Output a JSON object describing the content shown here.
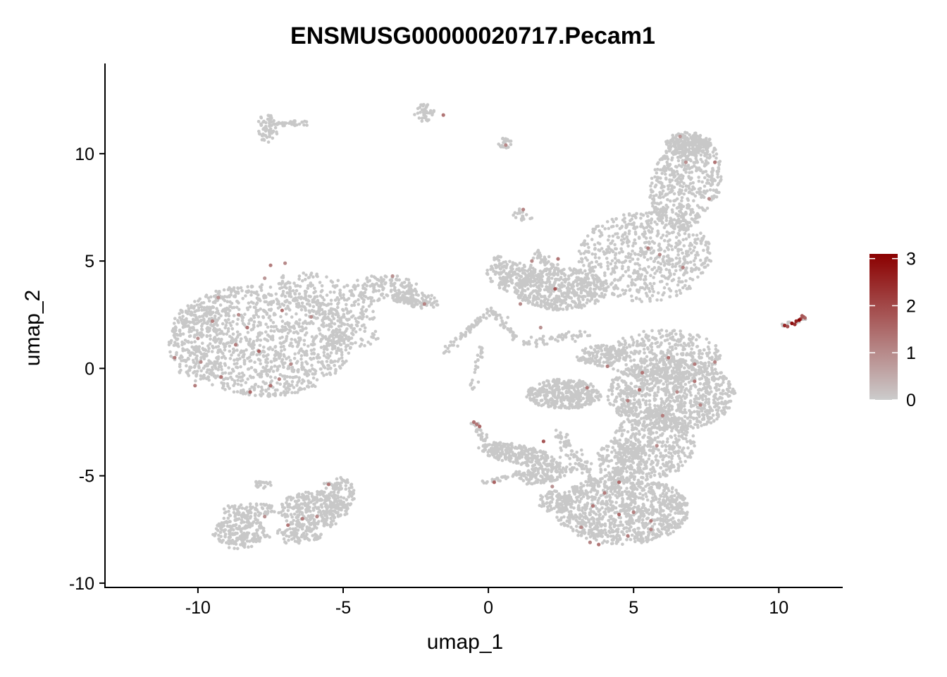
{
  "chart_data": {
    "type": "scatter",
    "title": "ENSMUSG00000020717.Pecam1",
    "xlabel": "umap_1",
    "ylabel": "umap_2",
    "xlim": [
      -13.2,
      12.2
    ],
    "ylim": [
      -10.2,
      14.2
    ],
    "x_ticks": [
      -10,
      -5,
      0,
      5,
      10
    ],
    "x_tick_labels": [
      "-10",
      "-5",
      "0",
      "5",
      "10"
    ],
    "y_ticks": [
      -10,
      -5,
      0,
      5,
      10
    ],
    "y_tick_labels": [
      "-10",
      "-5",
      "0",
      "5",
      "10"
    ],
    "grid": false,
    "legend_position": "right",
    "color_scale": {
      "low_color": "#cccccc",
      "high_color": "#8b0000",
      "min": 0,
      "max": 3.1,
      "ticks": [
        0,
        1,
        2,
        3
      ],
      "tick_labels": [
        "0",
        "1",
        "2",
        "3"
      ]
    },
    "background_point_color": "#c8c8c8",
    "clusters": [
      {
        "shape": "ellipse",
        "cx": -7.8,
        "cy": 1.3,
        "rx": 3.1,
        "ry": 2.6,
        "angle": -8,
        "n": 1200
      },
      {
        "shape": "ellipse",
        "cx": -10.1,
        "cy": 1.2,
        "rx": 0.9,
        "ry": 1.8,
        "angle": 0,
        "n": 160
      },
      {
        "shape": "ellipse",
        "cx": -5.6,
        "cy": 3.2,
        "rx": 1.9,
        "ry": 1.0,
        "angle": -30,
        "n": 220
      },
      {
        "shape": "ellipse",
        "cx": -3.6,
        "cy": 3.7,
        "rx": 1.2,
        "ry": 0.65,
        "angle": 0,
        "n": 150
      },
      {
        "shape": "ellipse",
        "cx": -2.4,
        "cy": 3.2,
        "rx": 0.7,
        "ry": 0.4,
        "angle": -20,
        "n": 60
      },
      {
        "shape": "ellipse",
        "cx": -4.6,
        "cy": 1.5,
        "rx": 0.9,
        "ry": 0.5,
        "angle": 0,
        "n": 50
      },
      {
        "shape": "ellipse",
        "cx": -7.6,
        "cy": 11.2,
        "rx": 0.35,
        "ry": 0.7,
        "angle": 0,
        "n": 60
      },
      {
        "shape": "ellipse",
        "cx": -6.8,
        "cy": 11.4,
        "rx": 0.7,
        "ry": 0.15,
        "angle": 0,
        "n": 30
      },
      {
        "shape": "ellipse",
        "cx": -2.2,
        "cy": 11.9,
        "rx": 0.35,
        "ry": 0.4,
        "angle": 0,
        "n": 40
      },
      {
        "shape": "ellipse",
        "cx": 0.55,
        "cy": 10.5,
        "rx": 0.25,
        "ry": 0.25,
        "angle": 0,
        "n": 25
      },
      {
        "shape": "ellipse",
        "cx": 1.2,
        "cy": 7.1,
        "rx": 0.35,
        "ry": 0.35,
        "angle": 0,
        "n": 20
      },
      {
        "shape": "ellipse",
        "cx": 2.5,
        "cy": 3.7,
        "rx": 1.6,
        "ry": 1.0,
        "angle": 0,
        "n": 500
      },
      {
        "shape": "ellipse",
        "cx": 0.8,
        "cy": 4.4,
        "rx": 0.9,
        "ry": 0.6,
        "angle": 0,
        "n": 150
      },
      {
        "shape": "ellipse",
        "cx": 5.4,
        "cy": 5.2,
        "rx": 2.3,
        "ry": 2.1,
        "angle": 0,
        "n": 650
      },
      {
        "shape": "ellipse",
        "cx": 6.8,
        "cy": 8.6,
        "rx": 1.2,
        "ry": 2.2,
        "angle": -10,
        "n": 500
      },
      {
        "shape": "ellipse",
        "cx": 6.9,
        "cy": 10.5,
        "rx": 0.8,
        "ry": 0.5,
        "angle": 0,
        "n": 200
      },
      {
        "shape": "ellipse",
        "cx": 6.0,
        "cy": 0.6,
        "rx": 2.0,
        "ry": 1.2,
        "angle": 0,
        "n": 400
      },
      {
        "shape": "ellipse",
        "cx": 6.3,
        "cy": -1.2,
        "rx": 2.2,
        "ry": 1.7,
        "angle": 0,
        "n": 900
      },
      {
        "shape": "ellipse",
        "cx": 5.7,
        "cy": -3.5,
        "rx": 1.4,
        "ry": 1.6,
        "angle": 0,
        "n": 400
      },
      {
        "shape": "ellipse",
        "cx": 4.6,
        "cy": -6.6,
        "rx": 2.3,
        "ry": 1.6,
        "angle": 0,
        "n": 1000
      },
      {
        "shape": "ellipse",
        "cx": 4.6,
        "cy": -4.3,
        "rx": 0.9,
        "ry": 1.0,
        "angle": 0,
        "n": 200
      },
      {
        "shape": "ellipse",
        "cx": 2.6,
        "cy": -1.2,
        "rx": 1.3,
        "ry": 0.7,
        "angle": 0,
        "n": 400
      },
      {
        "shape": "ellipse",
        "cx": 3.9,
        "cy": 0.6,
        "rx": 0.9,
        "ry": 0.5,
        "angle": 0,
        "n": 120
      },
      {
        "shape": "ellipse",
        "cx": 1.0,
        "cy": -4.0,
        "rx": 1.4,
        "ry": 0.45,
        "angle": -15,
        "n": 260
      },
      {
        "shape": "ellipse",
        "cx": 2.0,
        "cy": -4.9,
        "rx": 1.0,
        "ry": 0.4,
        "angle": 20,
        "n": 140
      },
      {
        "shape": "ellipse",
        "cx": 2.3,
        "cy": -6.2,
        "rx": 0.6,
        "ry": 0.5,
        "angle": 0,
        "n": 80
      },
      {
        "shape": "ellipse",
        "cx": -8.6,
        "cy": -7.6,
        "rx": 0.9,
        "ry": 0.8,
        "angle": 0,
        "n": 200
      },
      {
        "shape": "ellipse",
        "cx": -8.2,
        "cy": -6.6,
        "rx": 1.1,
        "ry": 0.3,
        "angle": 0,
        "n": 80
      },
      {
        "shape": "ellipse",
        "cx": -6.7,
        "cy": -7.8,
        "rx": 1.0,
        "ry": 0.35,
        "angle": 0,
        "n": 80
      },
      {
        "shape": "ellipse",
        "cx": -6.0,
        "cy": -6.6,
        "rx": 1.2,
        "ry": 0.9,
        "angle": 0,
        "n": 300
      },
      {
        "shape": "ellipse",
        "cx": -5.2,
        "cy": -5.9,
        "rx": 0.6,
        "ry": 0.9,
        "angle": 0,
        "n": 100
      },
      {
        "shape": "ellipse",
        "cx": -7.8,
        "cy": -5.4,
        "rx": 0.35,
        "ry": 0.2,
        "angle": 0,
        "n": 20
      },
      {
        "shape": "ellipse",
        "cx": 10.5,
        "cy": 2.15,
        "rx": 0.5,
        "ry": 0.08,
        "angle": 20,
        "n": 20
      },
      {
        "shape": "line",
        "x0": -3.2,
        "y0": 3.2,
        "x1": -1.9,
        "y1": 3.0,
        "spread": 0.15,
        "n": 40
      },
      {
        "shape": "line",
        "x0": -1.6,
        "y0": 0.7,
        "x1": 0.1,
        "y1": 2.7,
        "spread": 0.15,
        "n": 60
      },
      {
        "shape": "line",
        "x0": 0.1,
        "y0": 2.7,
        "x1": 1.0,
        "y1": 1.3,
        "spread": 0.2,
        "n": 40
      },
      {
        "shape": "line",
        "x0": 1.2,
        "y0": 1.2,
        "x1": 3.4,
        "y1": 1.6,
        "spread": 0.2,
        "n": 50
      },
      {
        "shape": "line",
        "x0": -0.6,
        "y0": -2.4,
        "x1": -0.1,
        "y1": -3.3,
        "spread": 0.15,
        "n": 30
      },
      {
        "shape": "line",
        "x0": -0.2,
        "y0": -5.3,
        "x1": 1.6,
        "y1": -4.8,
        "spread": 0.15,
        "n": 40
      },
      {
        "shape": "line",
        "x0": -0.2,
        "y0": 1.0,
        "x1": -0.6,
        "y1": -1.0,
        "spread": 0.1,
        "n": 25
      },
      {
        "shape": "line",
        "x0": 1.6,
        "y0": 5.4,
        "x1": 2.4,
        "y1": 4.4,
        "spread": 0.2,
        "n": 40
      },
      {
        "shape": "line",
        "x0": 0.3,
        "y0": 5.3,
        "x1": 0.6,
        "y1": 3.6,
        "spread": 0.15,
        "n": 40
      },
      {
        "shape": "line",
        "x0": 2.4,
        "y0": -3.0,
        "x1": 3.8,
        "y1": -5.6,
        "spread": 0.25,
        "n": 100
      }
    ],
    "points": [
      {
        "x": 10.2,
        "y": 2.0,
        "v": 2.5
      },
      {
        "x": 10.45,
        "y": 2.1,
        "v": 2.9
      },
      {
        "x": 10.6,
        "y": 2.2,
        "v": 2.6
      },
      {
        "x": 10.75,
        "y": 2.3,
        "v": 2.2
      },
      {
        "x": 10.85,
        "y": 2.4,
        "v": 2.0
      },
      {
        "x": 10.9,
        "y": 2.35,
        "v": 1.6
      },
      {
        "x": 10.3,
        "y": 1.95,
        "v": 1.9
      },
      {
        "x": 10.7,
        "y": 2.25,
        "v": 3.0
      },
      {
        "x": 10.55,
        "y": 2.05,
        "v": 2.4
      },
      {
        "x": 10.8,
        "y": 2.45,
        "v": 1.8
      },
      {
        "x": -7.5,
        "y": 4.8,
        "v": 1.2
      },
      {
        "x": -7.0,
        "y": 4.9,
        "v": 1.0
      },
      {
        "x": -9.5,
        "y": 2.2,
        "v": 1.1
      },
      {
        "x": -8.3,
        "y": 1.9,
        "v": 1.3
      },
      {
        "x": -7.1,
        "y": 2.7,
        "v": 1.4
      },
      {
        "x": -8.7,
        "y": 1.1,
        "v": 1.2
      },
      {
        "x": -7.9,
        "y": 0.8,
        "v": 1.6
      },
      {
        "x": -10.0,
        "y": 1.4,
        "v": 0.9
      },
      {
        "x": -10.8,
        "y": 0.5,
        "v": 1.2
      },
      {
        "x": -9.9,
        "y": 0.3,
        "v": 1.0
      },
      {
        "x": -9.2,
        "y": -0.4,
        "v": 1.3
      },
      {
        "x": -8.2,
        "y": -1.1,
        "v": 1.5
      },
      {
        "x": -7.5,
        "y": -0.8,
        "v": 1.4
      },
      {
        "x": -7.2,
        "y": -0.5,
        "v": 1.1
      },
      {
        "x": -6.8,
        "y": 0.2,
        "v": 1.0
      },
      {
        "x": -10.1,
        "y": -0.8,
        "v": 1.2
      },
      {
        "x": -6.1,
        "y": 2.4,
        "v": 1.0
      },
      {
        "x": -3.3,
        "y": 4.3,
        "v": 0.9
      },
      {
        "x": -2.2,
        "y": 3.0,
        "v": 1.1
      },
      {
        "x": -7.7,
        "y": 4.2,
        "v": 0.8
      },
      {
        "x": -9.3,
        "y": 3.3,
        "v": 0.9
      },
      {
        "x": -8.6,
        "y": 2.5,
        "v": 1.0
      },
      {
        "x": -1.55,
        "y": 11.8,
        "v": 1.3
      },
      {
        "x": 0.6,
        "y": 10.4,
        "v": 1.0
      },
      {
        "x": 1.2,
        "y": 7.4,
        "v": 1.1
      },
      {
        "x": 2.4,
        "y": 5.1,
        "v": 1.3
      },
      {
        "x": 1.5,
        "y": 5.0,
        "v": 1.0
      },
      {
        "x": 2.3,
        "y": 3.7,
        "v": 1.8
      },
      {
        "x": 1.1,
        "y": 3.0,
        "v": 1.0
      },
      {
        "x": 1.8,
        "y": 1.9,
        "v": 0.9
      },
      {
        "x": 5.5,
        "y": 5.6,
        "v": 1.2
      },
      {
        "x": 5.9,
        "y": 5.3,
        "v": 1.0
      },
      {
        "x": 6.7,
        "y": 4.7,
        "v": 1.1
      },
      {
        "x": 6.8,
        "y": 9.6,
        "v": 0.9
      },
      {
        "x": 7.8,
        "y": 9.6,
        "v": 1.3
      },
      {
        "x": 7.6,
        "y": 7.9,
        "v": 1.0
      },
      {
        "x": 6.6,
        "y": 10.8,
        "v": 0.8
      },
      {
        "x": 4.1,
        "y": 0.1,
        "v": 1.2
      },
      {
        "x": 5.3,
        "y": -0.2,
        "v": 1.3
      },
      {
        "x": 6.2,
        "y": 0.5,
        "v": 1.4
      },
      {
        "x": 7.1,
        "y": 0.2,
        "v": 1.2
      },
      {
        "x": 7.8,
        "y": 0.3,
        "v": 1.1
      },
      {
        "x": 7.1,
        "y": -0.6,
        "v": 1.3
      },
      {
        "x": 5.2,
        "y": -1.0,
        "v": 1.5
      },
      {
        "x": 4.8,
        "y": -1.5,
        "v": 1.2
      },
      {
        "x": 7.3,
        "y": -1.7,
        "v": 1.1
      },
      {
        "x": 6.5,
        "y": -1.1,
        "v": 1.0
      },
      {
        "x": 3.4,
        "y": -0.9,
        "v": 1.3
      },
      {
        "x": 6.0,
        "y": -2.2,
        "v": 1.2
      },
      {
        "x": 5.8,
        "y": -3.6,
        "v": 1.0
      },
      {
        "x": 1.9,
        "y": -3.4,
        "v": 1.8
      },
      {
        "x": -0.5,
        "y": -2.5,
        "v": 1.4
      },
      {
        "x": -0.3,
        "y": -2.7,
        "v": 1.5
      },
      {
        "x": -0.4,
        "y": -2.6,
        "v": 1.3
      },
      {
        "x": 0.2,
        "y": -5.3,
        "v": 1.6
      },
      {
        "x": 4.5,
        "y": -5.3,
        "v": 1.5
      },
      {
        "x": 4.0,
        "y": -5.8,
        "v": 1.2
      },
      {
        "x": 3.6,
        "y": -6.4,
        "v": 1.3
      },
      {
        "x": 4.5,
        "y": -6.8,
        "v": 1.5
      },
      {
        "x": 5.0,
        "y": -6.7,
        "v": 1.1
      },
      {
        "x": 5.6,
        "y": -7.1,
        "v": 1.2
      },
      {
        "x": 3.2,
        "y": -7.4,
        "v": 1.0
      },
      {
        "x": 3.5,
        "y": -8.1,
        "v": 1.1
      },
      {
        "x": 3.8,
        "y": -8.2,
        "v": 1.3
      },
      {
        "x": 4.8,
        "y": -7.8,
        "v": 1.2
      },
      {
        "x": 5.6,
        "y": -7.5,
        "v": 1.0
      },
      {
        "x": 2.2,
        "y": -5.5,
        "v": 0.9
      },
      {
        "x": -6.9,
        "y": -7.3,
        "v": 1.3
      },
      {
        "x": -6.4,
        "y": -7.0,
        "v": 1.2
      },
      {
        "x": -5.9,
        "y": -6.9,
        "v": 1.0
      },
      {
        "x": -5.5,
        "y": -5.4,
        "v": 1.3
      },
      {
        "x": -7.7,
        "y": -6.9,
        "v": 0.9
      }
    ]
  }
}
